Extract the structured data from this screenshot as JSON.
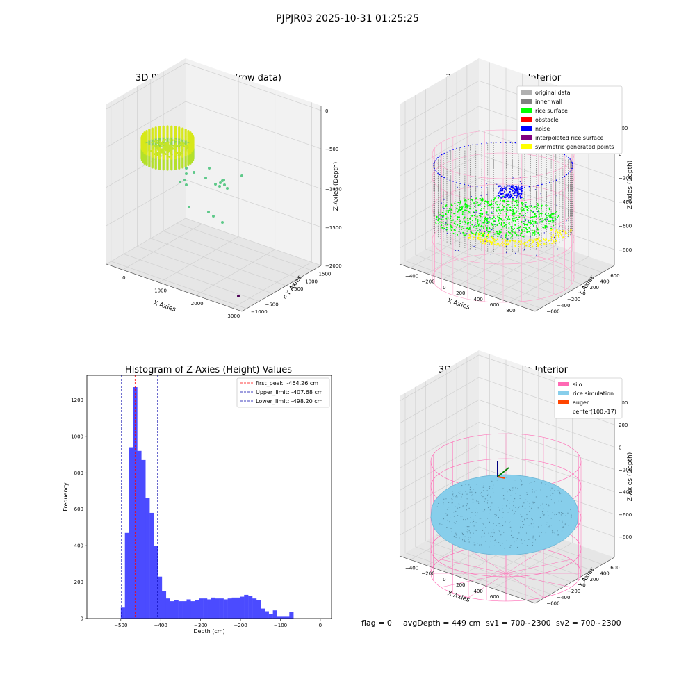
{
  "suptitle": "PJPJR03 2025-10-31 01:25:25",
  "footer": {
    "flag": "flag = 0",
    "avg_depth": "avgDepth = 449 cm",
    "sv1": "sv1 = 700~2300",
    "sv2": "sv2 = 700~2300"
  },
  "colors": {
    "original": "#b0b0b0",
    "inner_wall": "#808080",
    "rice_surface": "#00ff00",
    "obstacle": "#ff0000",
    "noise": "#0000ff",
    "interpolated": "#800080",
    "symmetric": "#ffff00",
    "silo": "#ff69b4",
    "rice_sim": "#87ceeb",
    "auger": "#ff4500",
    "hist_bar": "#4b4bff"
  },
  "chart_data": [
    {
      "type": "scatter",
      "title": "3D Plot of Silo Interior(row data)",
      "xlabel": "X Axies",
      "ylabel": "Y Axies",
      "zlabel": "Z-Axies (Depth)",
      "x_ticks": [
        "0",
        "1000",
        "2000",
        "3000"
      ],
      "y_ticks": [
        "−1000",
        "−500",
        "0",
        "500",
        "1000",
        "1500"
      ],
      "z_ticks": [
        "0",
        "−500",
        "−1000",
        "−1500",
        "−2000"
      ]
    },
    {
      "type": "scatter",
      "title": "3D classify of Silo Interior",
      "xlabel": "X Axies",
      "ylabel": "Y Axies",
      "zlabel": "Z-Axies (Depth)",
      "x_ticks": [
        "−400",
        "−200",
        "0",
        "200",
        "400",
        "600",
        "800"
      ],
      "y_ticks": [
        "−600",
        "−400",
        "−200",
        "0",
        "200",
        "400",
        "600"
      ],
      "z_ticks": [
        "200",
        "0",
        "−200",
        "−400",
        "−600",
        "−800"
      ],
      "legend": [
        "original data",
        "inner wall",
        "rice surface",
        "obstacle",
        "noise",
        "interpolated rice surface",
        "symmetric generated points"
      ]
    },
    {
      "type": "bar",
      "title": "Histogram of Z-Axies (Height) Values",
      "xlabel": "Depth (cm)",
      "ylabel": "Frequency",
      "xlim": [
        -585,
        28
      ],
      "ylim": [
        0,
        1335
      ],
      "x_ticks": [
        "−500",
        "−400",
        "−300",
        "−200",
        "−100",
        "0"
      ],
      "y_ticks": [
        "0",
        "200",
        "400",
        "600",
        "800",
        "1000",
        "1200"
      ],
      "bin_start": -500,
      "bin_width": 10.3,
      "values": [
        60,
        470,
        940,
        1270,
        920,
        870,
        660,
        580,
        400,
        230,
        150,
        110,
        95,
        100,
        95,
        95,
        105,
        95,
        100,
        110,
        110,
        105,
        115,
        110,
        110,
        105,
        110,
        115,
        115,
        120,
        130,
        125,
        110,
        100,
        55,
        40,
        25,
        45,
        10,
        10,
        10,
        35
      ],
      "lines": [
        {
          "label": "first_peak: -464.26 cm",
          "x": -464.26,
          "color": "#ff0000"
        },
        {
          "label": "Upper_limit: -407.68 cm",
          "x": -407.68,
          "color": "#0000aa"
        },
        {
          "label": "Lower_limit: -498.20 cm",
          "x": -498.2,
          "color": "#0000aa"
        }
      ]
    },
    {
      "type": "scatter",
      "title": "3D simulation of Silo Interior",
      "xlabel": "X Axies",
      "ylabel": "Y Axies",
      "zlabel": "Z-Axies (Depth)",
      "x_ticks": [
        "−400",
        "−200",
        "0",
        "200",
        "400",
        "600"
      ],
      "y_ticks": [
        "−600",
        "−400",
        "−200",
        "0",
        "200",
        "400",
        "600"
      ],
      "z_ticks": [
        "400",
        "200",
        "0",
        "−200",
        "−400",
        "−600",
        "−800"
      ],
      "legend": [
        "silo",
        "rice simulation",
        "auger",
        "center(100,-17)"
      ]
    }
  ]
}
